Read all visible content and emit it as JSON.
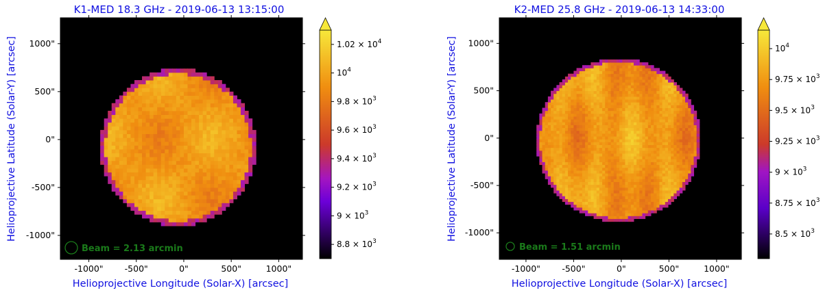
{
  "chart_data": [
    {
      "type": "heatmap",
      "title": "K1-MED 18.3 GHz - 2019-06-13 13:15:00",
      "xlabel": "Helioprojective Longitude (Solar-X) [arcsec]",
      "ylabel": "Helioprojective Latitude (Solar-Y) [arcsec]",
      "xlim": [
        -1300,
        1250
      ],
      "ylim": [
        -1250,
        1270
      ],
      "x_ticks": [
        -1000,
        -500,
        0,
        500,
        1000
      ],
      "y_ticks": [
        -1000,
        -500,
        0,
        500,
        1000
      ],
      "x_tick_labels": [
        "-1000\"",
        "-500\"",
        "0\"",
        "500\"",
        "1000\""
      ],
      "y_tick_labels": [
        "-1000\"",
        "-500\"",
        "0\"",
        "500\"",
        "1000\""
      ],
      "disk": {
        "center": [
          -60,
          -80
        ],
        "radius": 820,
        "pixel_size": 40
      },
      "brightness": {
        "min": 9200,
        "max": 10250
      },
      "beam_label": "Beam = 2.13 arcmin",
      "beam_arcmin": 2.13,
      "colorbar": {
        "range": [
          8700,
          10300
        ],
        "extend": "max",
        "ticks": [
          {
            "value": 8800,
            "mantissa": "8.8",
            "sep": " × ",
            "base": "10",
            "exp": "3"
          },
          {
            "value": 9000,
            "mantissa": "9",
            "sep": " × ",
            "base": "10",
            "exp": "3"
          },
          {
            "value": 9200,
            "mantissa": "9.2",
            "sep": " × ",
            "base": "10",
            "exp": "3"
          },
          {
            "value": 9400,
            "mantissa": "9.4",
            "sep": " × ",
            "base": "10",
            "exp": "3"
          },
          {
            "value": 9600,
            "mantissa": "9.6",
            "sep": " × ",
            "base": "10",
            "exp": "3"
          },
          {
            "value": 9800,
            "mantissa": "9.8",
            "sep": " × ",
            "base": "10",
            "exp": "3"
          },
          {
            "value": 10000,
            "mantissa": "",
            "sep": "",
            "base": "10",
            "exp": "4"
          },
          {
            "value": 10200,
            "mantissa": "1.02",
            "sep": " × ",
            "base": "10",
            "exp": "4"
          }
        ]
      }
    },
    {
      "type": "heatmap",
      "title": "K2-MED 25.8 GHz - 2019-06-13 14:33:00",
      "xlabel": "Helioprojective Longitude (Solar-X) [arcsec]",
      "ylabel": "Helioprojective Latitude (Solar-Y) [arcsec]",
      "xlim": [
        -1280,
        1260
      ],
      "ylim": [
        -1280,
        1270
      ],
      "x_ticks": [
        -1000,
        -500,
        0,
        500,
        1000
      ],
      "y_ticks": [
        -1000,
        -500,
        0,
        500,
        1000
      ],
      "x_tick_labels": [
        "-1000\"",
        "-500\"",
        "0\"",
        "500\"",
        "1000\""
      ],
      "y_tick_labels": [
        "-1000\"",
        "-500\"",
        "0\"",
        "500\"",
        "1000\""
      ],
      "disk": {
        "center": [
          -30,
          -20
        ],
        "radius": 860,
        "pixel_size": 30
      },
      "brightness": {
        "min": 9150,
        "max": 10050
      },
      "beam_label": "Beam = 1.51 arcmin",
      "beam_arcmin": 1.51,
      "colorbar": {
        "range": [
          8300,
          10150
        ],
        "extend": "max",
        "ticks": [
          {
            "value": 8500,
            "mantissa": "8.5",
            "sep": " × ",
            "base": "10",
            "exp": "3"
          },
          {
            "value": 8750,
            "mantissa": "8.75",
            "sep": " × ",
            "base": "10",
            "exp": "3"
          },
          {
            "value": 9000,
            "mantissa": "9",
            "sep": " × ",
            "base": "10",
            "exp": "3"
          },
          {
            "value": 9250,
            "mantissa": "9.25",
            "sep": " × ",
            "base": "10",
            "exp": "3"
          },
          {
            "value": 9500,
            "mantissa": "9.5",
            "sep": " × ",
            "base": "10",
            "exp": "3"
          },
          {
            "value": 9750,
            "mantissa": "9.75",
            "sep": " × ",
            "base": "10",
            "exp": "3"
          },
          {
            "value": 10000,
            "mantissa": "",
            "sep": "",
            "base": "10",
            "exp": "4"
          }
        ]
      }
    }
  ],
  "style": {
    "title_color": "#1010e0",
    "beam_color": "#1a7a1a",
    "background": "#000000"
  }
}
